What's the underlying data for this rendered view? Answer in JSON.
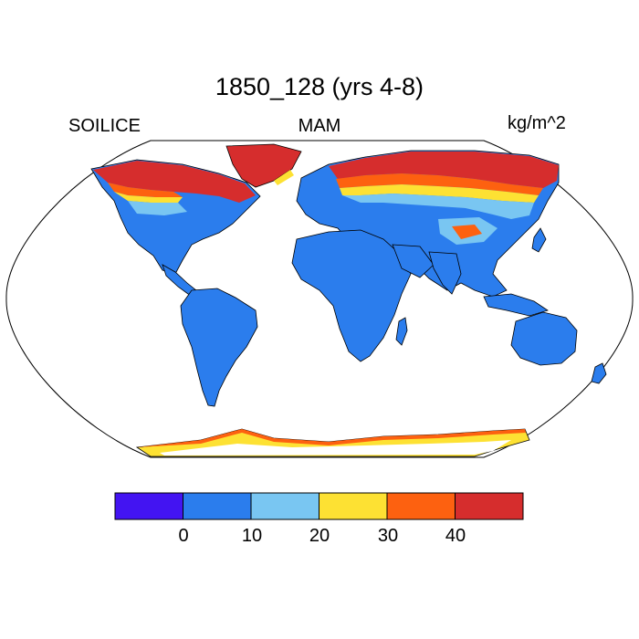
{
  "title": "1850_128 (yrs 4-8)",
  "variable": "SOILICE",
  "season": "MAM",
  "units": "kg/m^2",
  "colors": {
    "ocean": "#ffffff",
    "land_low": "#2b7ded",
    "frame": "#000000"
  },
  "colorbar": {
    "colors": [
      "#4314f2",
      "#2b7ded",
      "#79c6f2",
      "#fde133",
      "#fd6110",
      "#d62d2d"
    ],
    "tick_labels": [
      "0",
      "10",
      "20",
      "30",
      "40"
    ]
  }
}
